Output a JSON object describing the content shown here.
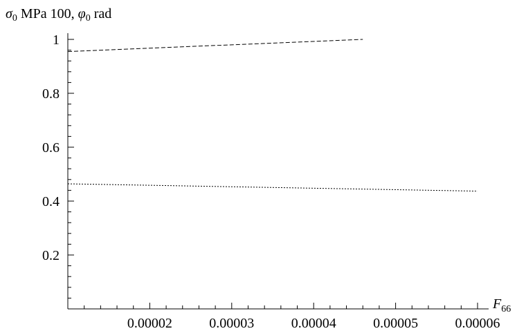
{
  "chart_data": {
    "type": "line",
    "title": "",
    "ylabel": {
      "sym1": "σ",
      "sub1": "0",
      "mid": " MPa 100, ",
      "sym2": "φ",
      "sub2": "0",
      "tail": " rad"
    },
    "xlabel": {
      "sym": "F",
      "sub": "66"
    },
    "xlim": [
      1e-05,
      6e-05
    ],
    "ylim": [
      0.0,
      1.0
    ],
    "x_major_ticks": [
      {
        "value": 2e-05,
        "label": "0.00002"
      },
      {
        "value": 3e-05,
        "label": "0.00003"
      },
      {
        "value": 4e-05,
        "label": "0.00004"
      },
      {
        "value": 5e-05,
        "label": "0.00005"
      },
      {
        "value": 6e-05,
        "label": "0.00006"
      }
    ],
    "y_major_ticks": [
      {
        "value": 0.2,
        "label": "0.2"
      },
      {
        "value": 0.4,
        "label": "0.4"
      },
      {
        "value": 0.6,
        "label": "0.6"
      },
      {
        "value": 0.8,
        "label": "0.8"
      },
      {
        "value": 1.0,
        "label": "1"
      }
    ],
    "series": [
      {
        "style": "dashed",
        "color": "#000000",
        "x": [
          1e-05,
          4.6e-05
        ],
        "y": [
          0.955,
          1.0
        ]
      },
      {
        "style": "dotted",
        "color": "#000000",
        "x": [
          1e-05,
          6e-05
        ],
        "y": [
          0.464,
          0.437
        ]
      }
    ]
  }
}
